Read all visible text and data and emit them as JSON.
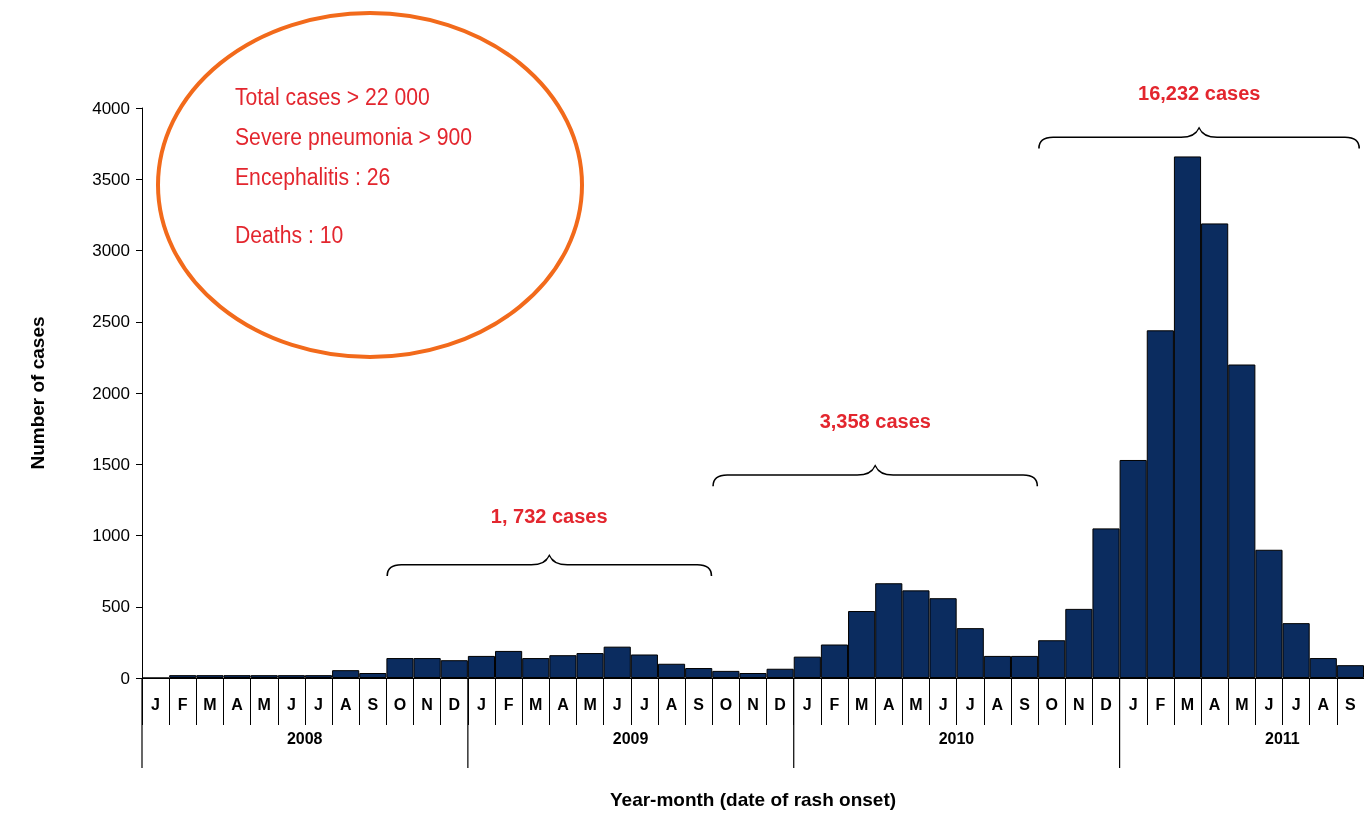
{
  "chart_data": {
    "type": "bar",
    "xlabel": "Year-month (date of rash onset)",
    "ylabel": "Number of cases",
    "categories": [
      "J",
      "F",
      "M",
      "A",
      "M",
      "J",
      "J",
      "A",
      "S",
      "O",
      "N",
      "D",
      "J",
      "F",
      "M",
      "A",
      "M",
      "J",
      "J",
      "A",
      "S",
      "O",
      "N",
      "D",
      "J",
      "F",
      "M",
      "A",
      "M",
      "J",
      "J",
      "A",
      "S",
      "O",
      "N",
      "D",
      "J",
      "F",
      "M",
      "A",
      "M",
      "J",
      "J",
      "A",
      "S"
    ],
    "values": [
      0,
      20,
      20,
      20,
      20,
      20,
      20,
      55,
      35,
      140,
      140,
      125,
      155,
      190,
      140,
      160,
      175,
      220,
      165,
      100,
      70,
      50,
      35,
      65,
      150,
      235,
      470,
      665,
      615,
      560,
      350,
      155,
      155,
      265,
      485,
      1050,
      1530,
      2440,
      3660,
      3190,
      2200,
      900,
      385,
      140,
      90
    ],
    "color": "#0b2c5f",
    "ylim": [
      0,
      4000
    ],
    "yticks": [
      0,
      500,
      1000,
      1500,
      2000,
      2500,
      3000,
      3500,
      4000
    ],
    "grid": false,
    "annotations": [
      "Total cases > 22 000",
      "Severe pneumonia > 900",
      "Encephalitis : 26",
      "Deaths : 10",
      "1, 732 cases",
      "3,358 cases",
      "16,232 cases",
      "2008",
      "2009",
      "2010",
      "2011"
    ]
  }
}
